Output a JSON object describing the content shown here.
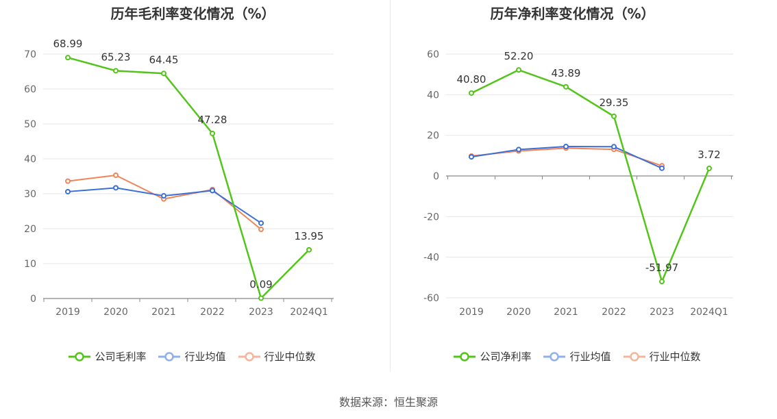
{
  "source": "数据来源：恒生聚源",
  "colors": {
    "company": "#52c41a",
    "avg": "#3a6fd8",
    "median": "#f08458",
    "grid": "#e6e6e6",
    "axis": "#888888",
    "text": "#333333"
  },
  "chart_data": [
    {
      "type": "line",
      "title": "历年毛利率变化情况（%）",
      "categories": [
        "2019",
        "2020",
        "2021",
        "2022",
        "2023",
        "2024Q1"
      ],
      "yticks": [
        "70",
        "60",
        "50",
        "40",
        "30",
        "20",
        "10",
        "0"
      ],
      "ylim": [
        0,
        70
      ],
      "grid": true,
      "legend": "bottom",
      "series": [
        {
          "name": "公司毛利率",
          "key": "company",
          "values": [
            68.99,
            65.23,
            64.45,
            47.28,
            0.09,
            13.95
          ],
          "labels": [
            "68.99",
            "65.23",
            "64.45",
            "47.28",
            "0.09",
            "13.95"
          ]
        },
        {
          "name": "行业均值",
          "key": "avg",
          "values": [
            30.6,
            31.7,
            29.4,
            30.9,
            21.6,
            null
          ]
        },
        {
          "name": "行业中位数",
          "key": "median",
          "values": [
            33.6,
            35.3,
            28.5,
            31.2,
            19.8,
            null
          ]
        }
      ]
    },
    {
      "type": "line",
      "title": "历年净利率变化情况（%）",
      "categories": [
        "2019",
        "2020",
        "2021",
        "2022",
        "2023",
        "2024Q1"
      ],
      "yticks": [
        "60",
        "40",
        "20",
        "0",
        "-20",
        "-40",
        "-60"
      ],
      "ylim": [
        -60,
        60
      ],
      "grid": true,
      "legend": "bottom",
      "series": [
        {
          "name": "公司净利率",
          "key": "company",
          "values": [
            40.8,
            52.2,
            43.89,
            29.35,
            -51.97,
            3.72
          ],
          "labels": [
            "40.80",
            "52.20",
            "43.89",
            "29.35",
            "-51.97",
            "3.72"
          ]
        },
        {
          "name": "行业均值",
          "key": "avg",
          "values": [
            9.4,
            13.0,
            14.5,
            14.4,
            3.8,
            null
          ]
        },
        {
          "name": "行业中位数",
          "key": "median",
          "values": [
            9.8,
            12.3,
            13.7,
            13.1,
            5.0,
            null
          ]
        }
      ]
    }
  ]
}
